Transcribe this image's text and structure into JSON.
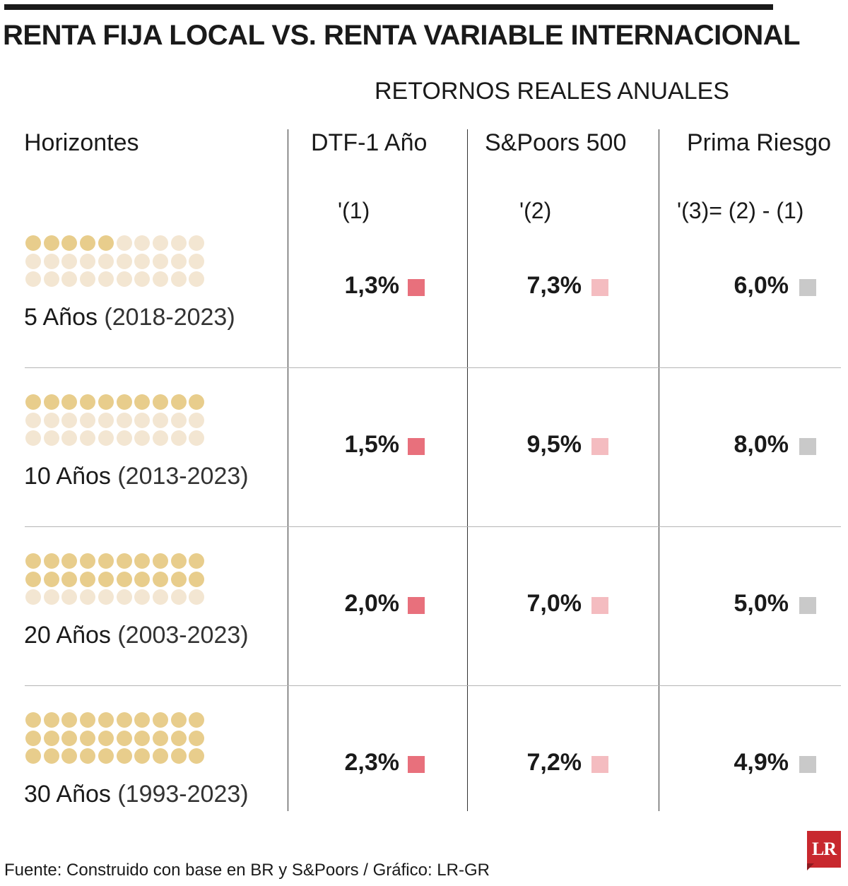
{
  "title": "RENTA FIJA LOCAL VS. RENTA VARIABLE INTERNACIONAL",
  "subtitle": "RETORNOS REALES ANUALES",
  "columns": {
    "horizon": "Horizontes",
    "dtf": "DTF-1 Año",
    "sp": "S&Poors 500",
    "prima": "Prima Riesgo"
  },
  "formulas": {
    "dtf": "'(1)",
    "sp": "'(2)",
    "prima": "'(3)= (2) - (1)"
  },
  "colors": {
    "dot_filled": "#e8cd8c",
    "dot_empty": "#f3e6d2",
    "dtf_marker": "#e8707c",
    "sp_marker": "#f4bcc0",
    "prima_marker": "#c9c9c9"
  },
  "chart_data": {
    "type": "table",
    "rows": [
      {
        "label": "5 Años",
        "years_range": "(2018-2023)",
        "horizon_years": 5,
        "dtf": "1,3%",
        "sp": "7,3%",
        "prima": "6,0%"
      },
      {
        "label": "10 Años",
        "years_range": "(2013-2023)",
        "horizon_years": 10,
        "dtf": "1,5%",
        "sp": "9,5%",
        "prima": "8,0%"
      },
      {
        "label": "20 Años",
        "years_range": "(2003-2023)",
        "horizon_years": 20,
        "dtf": "2,0%",
        "sp": "7,0%",
        "prima": "5,0%"
      },
      {
        "label": "30 Años",
        "years_range": "(1993-2023)",
        "horizon_years": 30,
        "dtf": "2,3%",
        "sp": "7,2%",
        "prima": "4,9%"
      }
    ],
    "dot_grid": {
      "rows": 3,
      "cols": 10,
      "total": 30
    }
  },
  "footer": "Fuente: Construido con base en BR y S&Poors / Gráfico: LR-GR",
  "logo": "LR"
}
